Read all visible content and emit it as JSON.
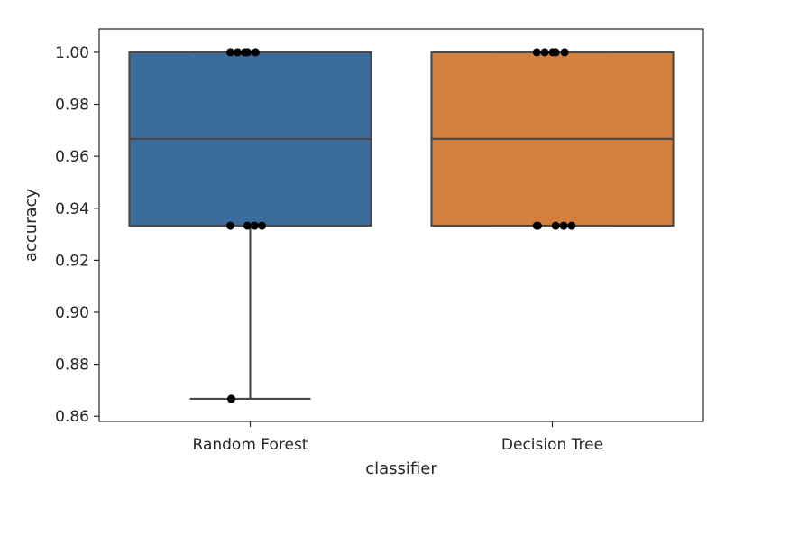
{
  "chart_data": {
    "type": "box",
    "xlabel": "classifier",
    "ylabel": "accuracy",
    "ylim": [
      0.858,
      1.009
    ],
    "yticks": [
      "0.86",
      "0.88",
      "0.90",
      "0.92",
      "0.94",
      "0.96",
      "0.98",
      "1.00"
    ],
    "grid": false,
    "categories": [
      {
        "name": "Random Forest",
        "color": "#3b6d9c",
        "whisker_low": 0.8667,
        "q1": 0.9333,
        "median": 0.9667,
        "q3": 1.0,
        "whisker_high": 1.0,
        "points": [
          1.0,
          1.0,
          1.0,
          1.0,
          1.0,
          0.9333,
          0.9333,
          0.9333,
          0.9333,
          0.8667
        ]
      },
      {
        "name": "Decision Tree",
        "color": "#d4803c",
        "whisker_low": 0.9333,
        "q1": 0.9333,
        "median": 0.9667,
        "q3": 1.0,
        "whisker_high": 1.0,
        "points": [
          1.0,
          1.0,
          1.0,
          1.0,
          1.0,
          0.9333,
          0.9333,
          0.9333,
          0.9333,
          0.9333
        ]
      }
    ]
  }
}
